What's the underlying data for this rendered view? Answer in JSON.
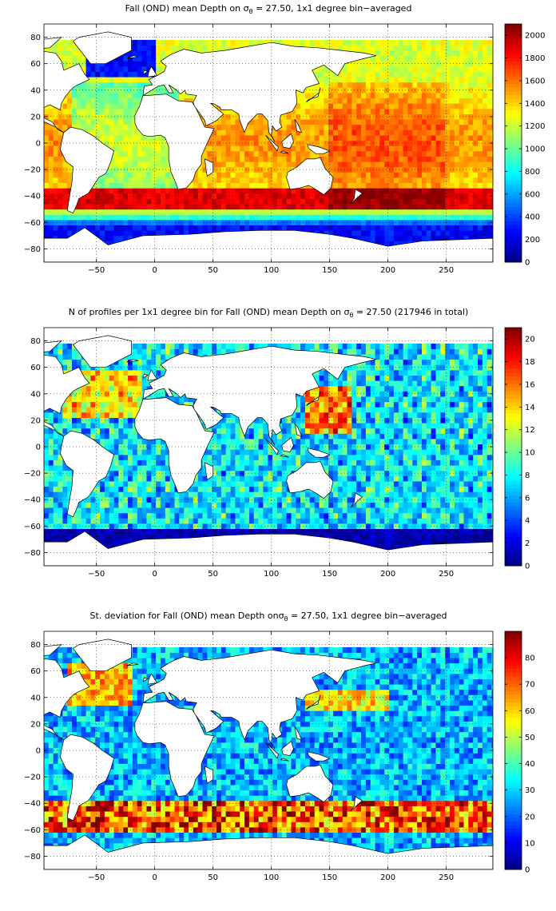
{
  "chart_data": [
    {
      "type": "heatmap",
      "title_prefix": "Fall (OND) mean Depth on ",
      "title_symbol": "σ",
      "title_sub": "θ",
      "title_suffix": " = 27.50, 1x1 degree bin−averaged",
      "xlim": [
        -95,
        290
      ],
      "ylim": [
        -90,
        90
      ],
      "x_ticks": [
        -50,
        0,
        50,
        100,
        150,
        200,
        250
      ],
      "y_ticks": [
        80,
        60,
        40,
        20,
        0,
        -20,
        -40,
        -60,
        -80
      ],
      "grid": true,
      "colorbar": {
        "min": 0,
        "max": 2100,
        "ticks": [
          2000,
          1800,
          1600,
          1400,
          1200,
          1000,
          800,
          600,
          400,
          200,
          0
        ],
        "colormap": "jet"
      },
      "field": "depth"
    },
    {
      "type": "heatmap",
      "title_prefix": "N of profiles per 1x1 degree bin for Fall (OND) mean Depth on ",
      "title_symbol": "σ",
      "title_sub": "θ",
      "title_suffix": " = 27.50 (217946 in total)",
      "xlim": [
        -95,
        290
      ],
      "ylim": [
        -90,
        90
      ],
      "x_ticks": [
        -50,
        0,
        50,
        100,
        150,
        200,
        250
      ],
      "y_ticks": [
        80,
        60,
        40,
        20,
        0,
        -20,
        -40,
        -60,
        -80
      ],
      "grid": true,
      "colorbar": {
        "min": 0,
        "max": 21,
        "ticks": [
          20,
          18,
          16,
          14,
          12,
          10,
          8,
          6,
          4,
          2,
          0
        ],
        "colormap": "jet"
      },
      "field": "count"
    },
    {
      "type": "heatmap",
      "title_prefix": "St. deviation for Fall (OND) mean Depth on",
      "title_symbol": "σ",
      "title_sub": "θ",
      "title_suffix": " = 27.50, 1x1 degree bin−averaged",
      "xlim": [
        -95,
        290
      ],
      "ylim": [
        -90,
        90
      ],
      "x_ticks": [
        -50,
        0,
        50,
        100,
        150,
        200,
        250
      ],
      "y_ticks": [
        80,
        60,
        40,
        20,
        0,
        -20,
        -40,
        -60,
        -80
      ],
      "grid": true,
      "colorbar": {
        "min": 0,
        "max": 90,
        "ticks": [
          80,
          70,
          60,
          50,
          40,
          30,
          20,
          10,
          0
        ],
        "colormap": "jet"
      },
      "field": "std"
    }
  ]
}
